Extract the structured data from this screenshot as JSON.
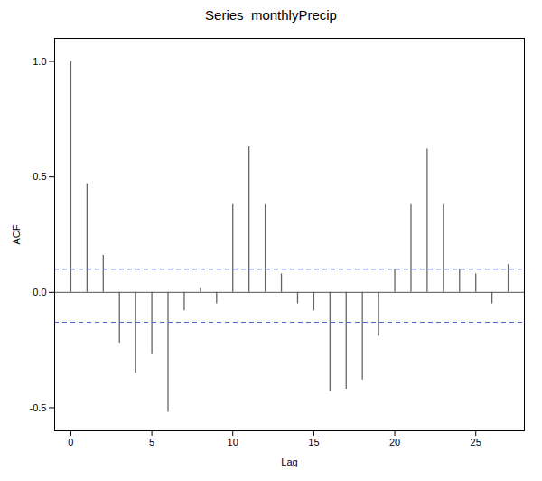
{
  "chart_data": {
    "type": "stem",
    "title": "Series  monthlyPrecip",
    "xlabel": "Lag",
    "ylabel": "ACF",
    "x": [
      0,
      1,
      2,
      3,
      4,
      5,
      6,
      7,
      8,
      9,
      10,
      11,
      12,
      13,
      14,
      15,
      16,
      17,
      18,
      19,
      20,
      21,
      22,
      23,
      24,
      25,
      26,
      27
    ],
    "values": [
      1.0,
      0.47,
      0.16,
      -0.22,
      -0.35,
      -0.27,
      -0.52,
      -0.08,
      0.02,
      -0.05,
      0.38,
      0.63,
      0.38,
      0.08,
      -0.05,
      -0.08,
      -0.43,
      -0.42,
      -0.38,
      -0.19,
      0.1,
      0.38,
      0.62,
      0.38,
      0.1,
      0.08,
      -0.05,
      0.12
    ],
    "color": "#666666",
    "confidence_interval": [
      0.1,
      -0.13
    ],
    "xlim": [
      -1,
      28
    ],
    "xticks": [
      0,
      5,
      10,
      15,
      20,
      25
    ],
    "ylim": [
      -0.6,
      1.1
    ],
    "yticks": [
      -0.5,
      {
        "value": 0,
        "label": "0.0"
      },
      0.5,
      {
        "value": 1,
        "label": "1.0"
      }
    ],
    "grid": false
  }
}
